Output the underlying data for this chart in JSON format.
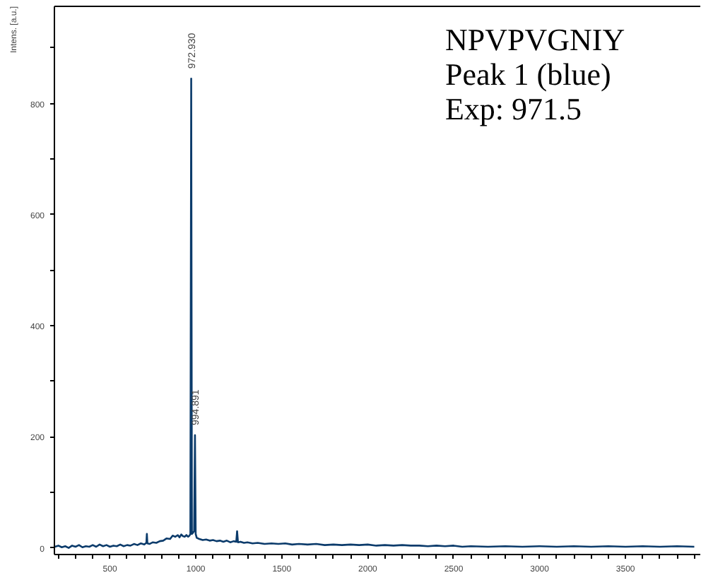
{
  "chart_data": {
    "type": "line",
    "ylabel": "Intens. [a.u.]",
    "color": "#0b3b6b",
    "x": [
      180,
      200,
      220,
      240,
      260,
      280,
      300,
      320,
      340,
      360,
      380,
      400,
      420,
      440,
      460,
      480,
      500,
      520,
      540,
      560,
      580,
      600,
      620,
      640,
      660,
      680,
      700,
      712,
      715,
      718,
      730,
      750,
      770,
      790,
      810,
      830,
      850,
      865,
      880,
      895,
      905,
      915,
      925,
      935,
      945,
      955,
      963,
      968,
      972.93,
      977,
      985,
      990,
      994.891,
      999,
      1005,
      1020,
      1040,
      1060,
      1080,
      1100,
      1120,
      1140,
      1160,
      1180,
      1200,
      1220,
      1235,
      1240,
      1245,
      1260,
      1280,
      1300,
      1330,
      1360,
      1400,
      1440,
      1480,
      1520,
      1560,
      1600,
      1650,
      1700,
      1750,
      1800,
      1850,
      1900,
      1950,
      2000,
      2050,
      2100,
      2150,
      2200,
      2250,
      2300,
      2350,
      2400,
      2450,
      2500,
      2550,
      2600,
      2700,
      2800,
      2900,
      3000,
      3100,
      3200,
      3300,
      3400,
      3500,
      3600,
      3700,
      3800,
      3900
    ],
    "values": [
      2,
      4,
      1,
      3,
      0,
      4,
      2,
      5,
      1,
      3,
      2,
      5,
      2,
      6,
      3,
      5,
      2,
      4,
      3,
      6,
      3,
      5,
      4,
      7,
      5,
      8,
      6,
      9,
      25,
      8,
      7,
      10,
      9,
      12,
      13,
      17,
      16,
      22,
      20,
      23,
      19,
      24,
      21,
      20,
      23,
      20,
      22,
      25,
      845,
      25,
      28,
      30,
      203,
      25,
      18,
      16,
      14,
      15,
      13,
      14,
      12,
      13,
      11,
      13,
      10,
      12,
      11,
      30,
      10,
      11,
      9,
      10,
      8,
      9,
      7,
      8,
      7,
      8,
      6,
      7,
      6,
      7,
      5,
      6,
      5,
      6,
      5,
      6,
      4,
      5,
      4,
      5,
      4,
      4,
      3,
      4,
      3,
      4,
      2,
      3,
      2,
      3,
      2,
      3,
      2,
      3,
      2,
      3,
      2,
      3,
      2,
      3,
      2
    ],
    "xlim": [
      177,
      3935
    ],
    "ylim": [
      -12,
      975
    ],
    "xticks": [
      {
        "value": 200,
        "label": null
      },
      {
        "value": 300,
        "label": null
      },
      {
        "value": 400,
        "label": null
      },
      500,
      {
        "value": 600,
        "label": null
      },
      {
        "value": 700,
        "label": null
      },
      {
        "value": 800,
        "label": null
      },
      {
        "value": 900,
        "label": null
      },
      1000,
      {
        "value": 1100,
        "label": null
      },
      {
        "value": 1200,
        "label": null
      },
      {
        "value": 1300,
        "label": null
      },
      {
        "value": 1400,
        "label": null
      },
      1500,
      {
        "value": 1600,
        "label": null
      },
      {
        "value": 1700,
        "label": null
      },
      {
        "value": 1800,
        "label": null
      },
      {
        "value": 1900,
        "label": null
      },
      2000,
      {
        "value": 2100,
        "label": null
      },
      {
        "value": 2200,
        "label": null
      },
      {
        "value": 2300,
        "label": null
      },
      {
        "value": 2400,
        "label": null
      },
      2500,
      {
        "value": 2600,
        "label": null
      },
      {
        "value": 2700,
        "label": null
      },
      {
        "value": 2800,
        "label": null
      },
      {
        "value": 2900,
        "label": null
      },
      3000,
      {
        "value": 3100,
        "label": null
      },
      {
        "value": 3200,
        "label": null
      },
      {
        "value": 3300,
        "label": null
      },
      {
        "value": 3400,
        "label": null
      },
      3500,
      {
        "value": 3600,
        "label": null
      },
      {
        "value": 3700,
        "label": null
      },
      {
        "value": 3800,
        "label": null
      },
      {
        "value": 3900,
        "label": null
      }
    ],
    "yticks": [
      0,
      {
        "value": 100,
        "label": null
      },
      200,
      {
        "value": 300,
        "label": null
      },
      400,
      {
        "value": 500,
        "label": null
      },
      600,
      {
        "value": 700,
        "label": null
      },
      800,
      {
        "value": 900,
        "label": null
      }
    ],
    "annotations": [
      "NPVPVGNIY",
      "Peak 1 (blue)",
      "Exp: 971.5",
      {
        "text": "972.930",
        "x": 972.93,
        "y": 845
      },
      {
        "text": "994.891",
        "x": 994.891,
        "y": 203
      }
    ]
  }
}
